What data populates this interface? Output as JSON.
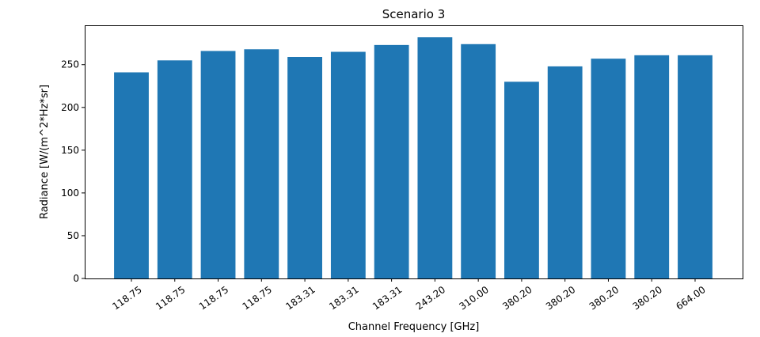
{
  "chart_data": {
    "type": "bar",
    "title": "Scenario 3",
    "xlabel": "Channel Frequency [GHz]",
    "ylabel": "Radiance [W/(m^2*Hz*sr]",
    "categories": [
      "118.75",
      "118.75",
      "118.75",
      "118.75",
      "183.31",
      "183.31",
      "183.31",
      "243.20",
      "310.00",
      "380.20",
      "380.20",
      "380.20",
      "380.20",
      "664.00"
    ],
    "values": [
      241,
      255,
      266,
      268,
      259,
      265,
      273,
      282,
      274,
      230,
      248,
      257,
      261,
      261
    ],
    "ylim": [
      0,
      296
    ],
    "yticks": [
      0,
      50,
      100,
      150,
      200,
      250
    ],
    "grid": false,
    "bar_color": "#1f77b4"
  }
}
